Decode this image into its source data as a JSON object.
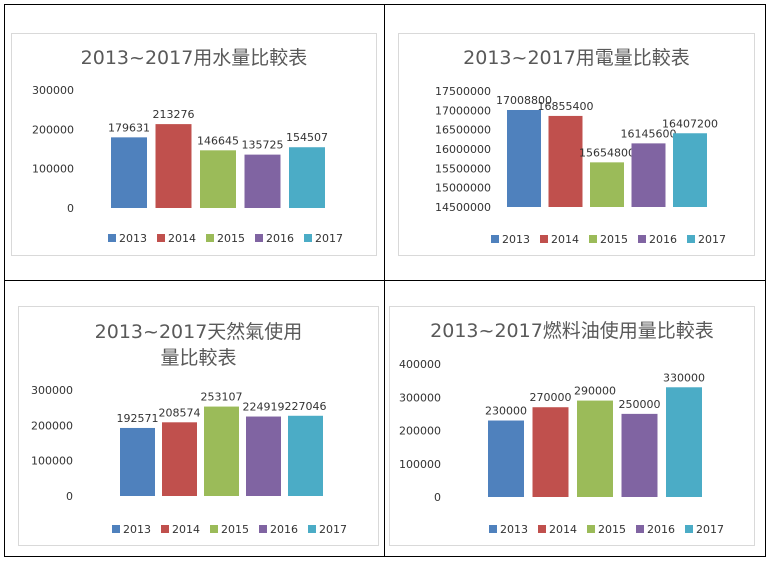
{
  "colors": {
    "2013": "#4f81bd",
    "2014": "#c0504d",
    "2015": "#9bbb59",
    "2016": "#8064a2",
    "2017": "#4bacc6"
  },
  "chart_data": [
    {
      "type": "bar",
      "title": "2013~2017用水量比較表",
      "categories": [
        "2013",
        "2014",
        "2015",
        "2016",
        "2017"
      ],
      "values": [
        179631,
        213276,
        146645,
        135725,
        154507
      ],
      "data_labels": [
        "179631",
        "213276",
        "146645",
        "135725",
        "154507"
      ],
      "yticks": [
        "0",
        "100000",
        "200000",
        "300000"
      ],
      "ylim": [
        0,
        300000
      ],
      "legend": [
        "2013",
        "2014",
        "2015",
        "2016",
        "2017"
      ],
      "legend_position": "bottom",
      "grid": false
    },
    {
      "type": "bar",
      "title": "2013~2017用電量比較表",
      "categories": [
        "2013",
        "2014",
        "2015",
        "2016",
        "2017"
      ],
      "values": [
        17008800,
        16855400,
        15654800,
        16145600,
        16407200
      ],
      "data_labels": [
        "17008800",
        "16855400",
        "15654800",
        "16145600",
        "16407200"
      ],
      "yticks": [
        "14500000",
        "15000000",
        "15500000",
        "16000000",
        "16500000",
        "17000000",
        "17500000"
      ],
      "ylim": [
        14500000,
        17500000
      ],
      "legend": [
        "2013",
        "2014",
        "2015",
        "2016",
        "2017"
      ],
      "legend_position": "bottom",
      "grid": false
    },
    {
      "type": "bar",
      "title": "2013~2017天然氣使用量比較表",
      "categories": [
        "2013",
        "2014",
        "2015",
        "2016",
        "2017"
      ],
      "values": [
        192571,
        208574,
        253107,
        224919,
        227046
      ],
      "data_labels": [
        "192571",
        "208574",
        "253107",
        "224919",
        "227046"
      ],
      "yticks": [
        "0",
        "100000",
        "200000",
        "300000"
      ],
      "ylim": [
        0,
        300000
      ],
      "legend": [
        "2013",
        "2014",
        "2015",
        "2016",
        "2017"
      ],
      "legend_position": "bottom",
      "grid": false
    },
    {
      "type": "bar",
      "title": "2013~2017燃料油使用量比較表",
      "categories": [
        "2013",
        "2014",
        "2015",
        "2016",
        "2017"
      ],
      "values": [
        230000,
        270000,
        290000,
        250000,
        330000
      ],
      "data_labels": [
        "230000",
        "270000",
        "290000",
        "250000",
        "330000"
      ],
      "yticks": [
        "0",
        "100000",
        "200000",
        "300000",
        "400000"
      ],
      "ylim": [
        0,
        400000
      ],
      "legend": [
        "2013",
        "2014",
        "2015",
        "2016",
        "2017"
      ],
      "legend_position": "bottom",
      "grid": false
    }
  ]
}
